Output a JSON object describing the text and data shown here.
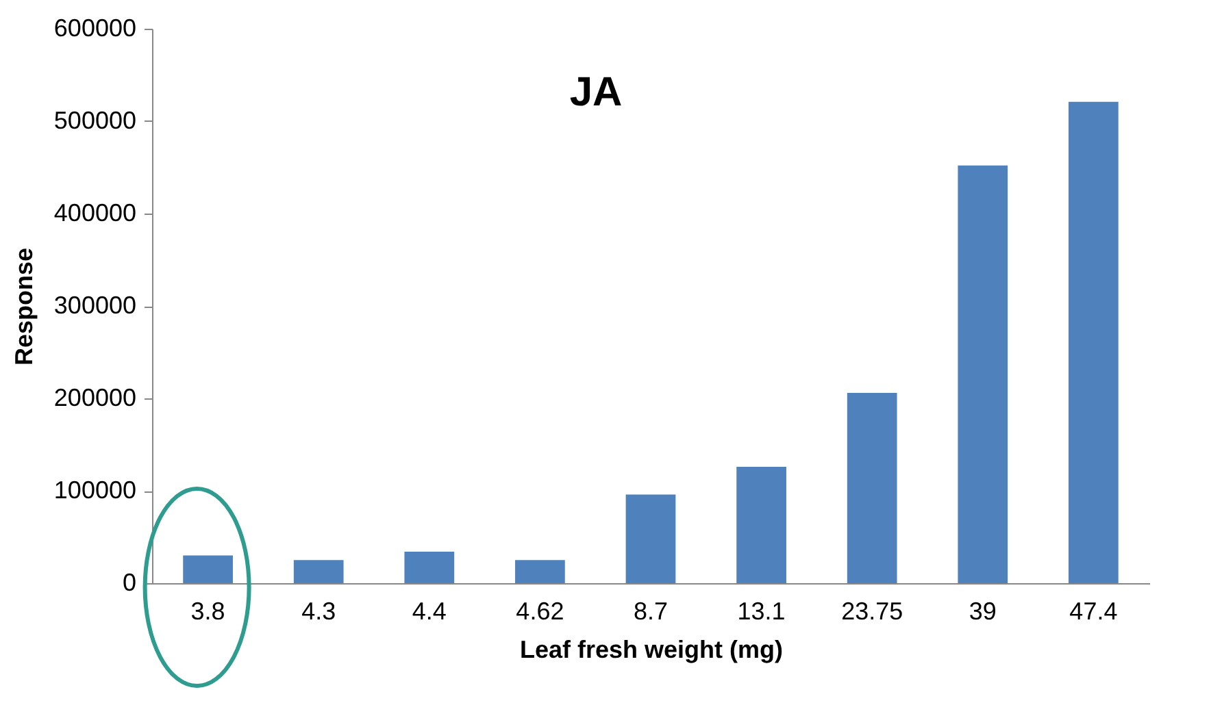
{
  "chart_data": {
    "type": "bar",
    "title": "JA",
    "xlabel": "Leaf fresh weight (mg)",
    "ylabel": "Response",
    "categories": [
      "3.8",
      "4.3",
      "4.4",
      "4.62",
      "8.7",
      "13.1",
      "23.75",
      "39",
      "47.4"
    ],
    "values": [
      30000,
      25000,
      34000,
      25000,
      96000,
      126000,
      206000,
      452000,
      521000
    ],
    "color": "#4f81bd",
    "ylim": [
      0,
      600000
    ],
    "yticks": [
      0,
      100000,
      200000,
      300000,
      400000,
      500000,
      600000
    ],
    "grid": false
  }
}
